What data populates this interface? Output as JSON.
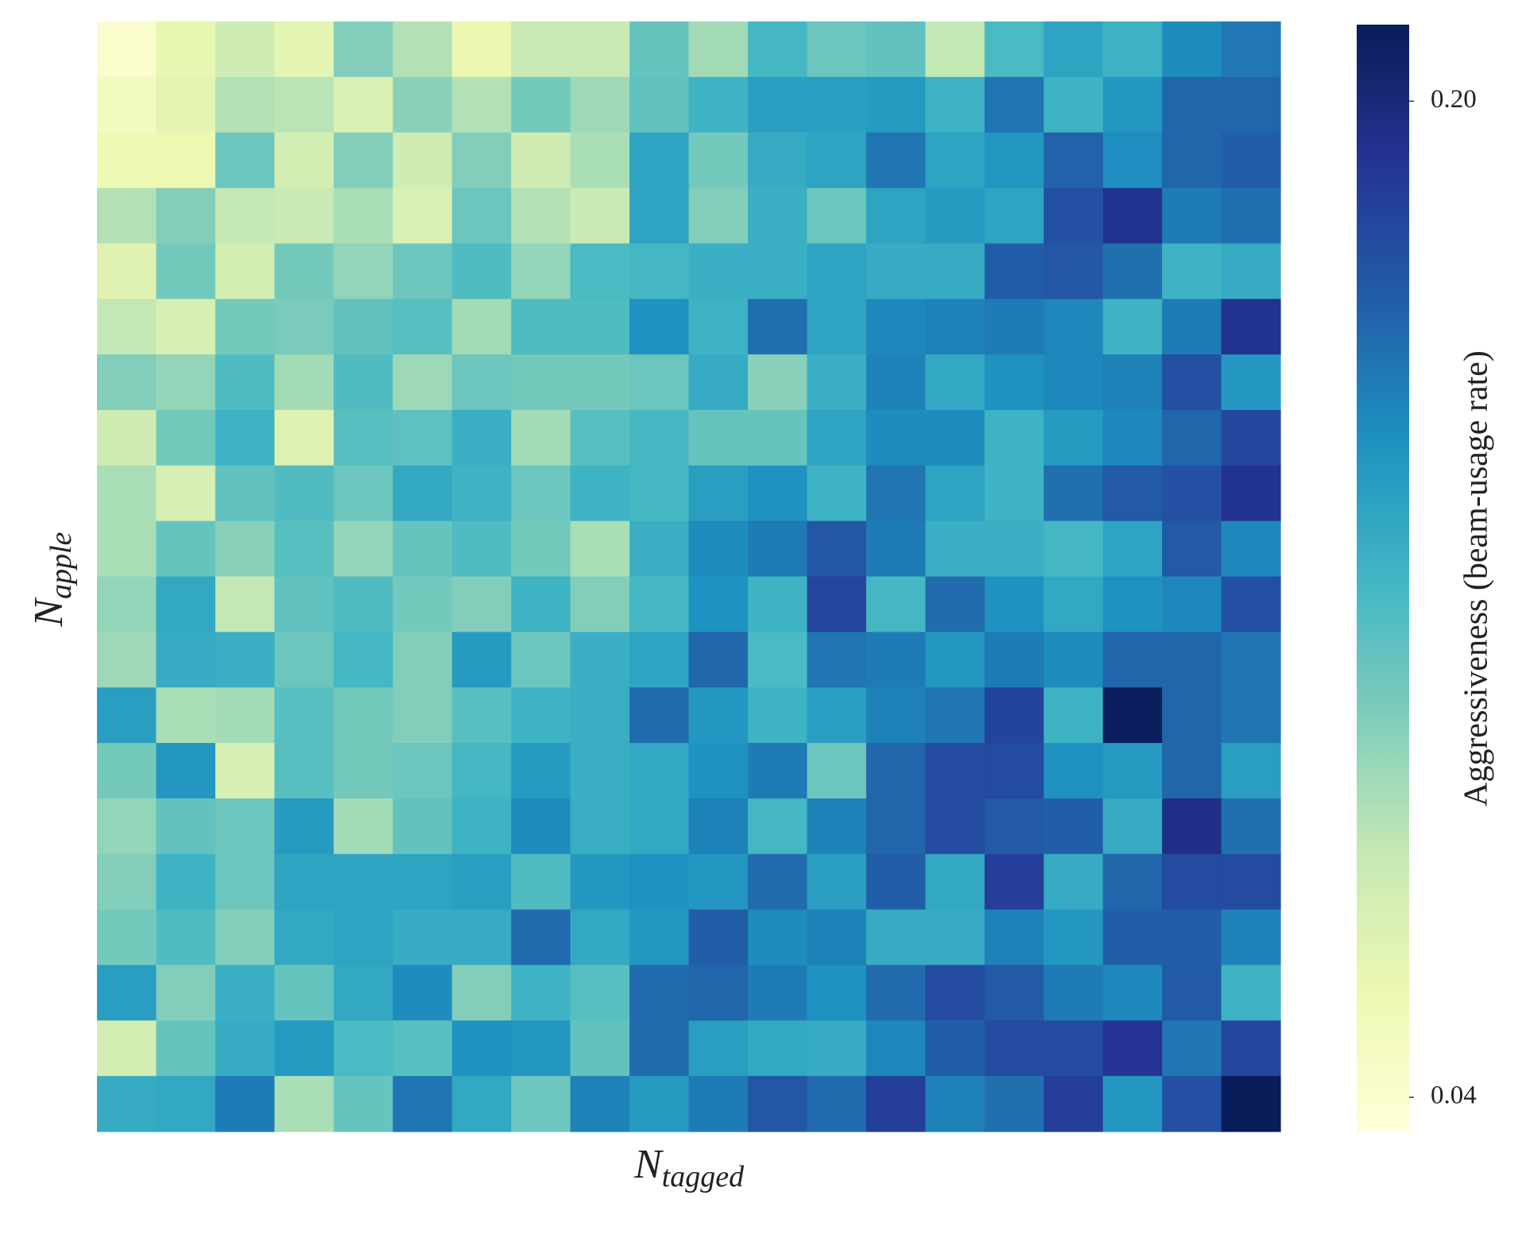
{
  "chart_data": {
    "type": "heatmap",
    "xlabel": {
      "main": "N",
      "subscript": "tagged"
    },
    "ylabel": {
      "main": "N",
      "subscript": "apple"
    },
    "colorbar_label": "Aggressiveness (beam-usage rate)",
    "colormap": [
      "#ffffd9",
      "#edf8b1",
      "#c7e9b4",
      "#7fcdbb",
      "#41b6c4",
      "#1d91c0",
      "#225ea8",
      "#253494",
      "#081d58"
    ],
    "clim": [
      0.0345,
      0.2123
    ],
    "colorbar_ticks": [
      0.04,
      {
        "value": 0.2,
        "label": "0.20"
      }
    ],
    "values": [
      [
        0.04,
        0.06,
        0.075,
        0.062,
        0.1,
        0.085,
        0.058,
        0.078,
        0.078,
        0.11,
        0.09,
        0.122,
        0.108,
        0.112,
        0.08,
        0.12,
        0.135,
        0.125,
        0.148,
        0.157
      ],
      [
        0.05,
        0.062,
        0.085,
        0.083,
        0.068,
        0.098,
        0.085,
        0.105,
        0.092,
        0.112,
        0.125,
        0.138,
        0.138,
        0.14,
        0.125,
        0.158,
        0.125,
        0.142,
        0.165,
        0.165
      ],
      [
        0.055,
        0.057,
        0.108,
        0.072,
        0.1,
        0.075,
        0.1,
        0.075,
        0.088,
        0.135,
        0.105,
        0.13,
        0.135,
        0.158,
        0.135,
        0.142,
        0.166,
        0.147,
        0.165,
        0.168
      ],
      [
        0.085,
        0.1,
        0.08,
        0.078,
        0.088,
        0.068,
        0.108,
        0.085,
        0.077,
        0.135,
        0.1,
        0.128,
        0.108,
        0.135,
        0.14,
        0.135,
        0.175,
        0.192,
        0.155,
        0.16
      ],
      [
        0.065,
        0.105,
        0.072,
        0.105,
        0.095,
        0.108,
        0.118,
        0.095,
        0.12,
        0.122,
        0.128,
        0.128,
        0.135,
        0.13,
        0.13,
        0.168,
        0.172,
        0.16,
        0.125,
        0.13
      ],
      [
        0.08,
        0.07,
        0.105,
        0.103,
        0.112,
        0.115,
        0.09,
        0.118,
        0.118,
        0.145,
        0.125,
        0.16,
        0.135,
        0.15,
        0.152,
        0.155,
        0.15,
        0.125,
        0.155,
        0.192
      ],
      [
        0.1,
        0.095,
        0.118,
        0.09,
        0.118,
        0.092,
        0.108,
        0.105,
        0.105,
        0.108,
        0.13,
        0.098,
        0.128,
        0.152,
        0.132,
        0.145,
        0.15,
        0.152,
        0.175,
        0.142
      ],
      [
        0.075,
        0.105,
        0.125,
        0.065,
        0.115,
        0.113,
        0.128,
        0.09,
        0.115,
        0.122,
        0.11,
        0.11,
        0.135,
        0.148,
        0.148,
        0.125,
        0.14,
        0.15,
        0.165,
        0.18
      ],
      [
        0.088,
        0.07,
        0.112,
        0.118,
        0.108,
        0.132,
        0.125,
        0.108,
        0.125,
        0.122,
        0.138,
        0.145,
        0.125,
        0.158,
        0.135,
        0.125,
        0.16,
        0.17,
        0.175,
        0.192
      ],
      [
        0.088,
        0.11,
        0.098,
        0.115,
        0.095,
        0.11,
        0.118,
        0.105,
        0.088,
        0.128,
        0.148,
        0.155,
        0.172,
        0.155,
        0.128,
        0.128,
        0.122,
        0.135,
        0.17,
        0.15
      ],
      [
        0.095,
        0.132,
        0.08,
        0.112,
        0.118,
        0.105,
        0.1,
        0.125,
        0.1,
        0.122,
        0.145,
        0.125,
        0.18,
        0.122,
        0.162,
        0.145,
        0.132,
        0.145,
        0.15,
        0.175
      ],
      [
        0.092,
        0.13,
        0.128,
        0.108,
        0.122,
        0.1,
        0.14,
        0.108,
        0.128,
        0.135,
        0.165,
        0.12,
        0.158,
        0.155,
        0.142,
        0.155,
        0.148,
        0.165,
        0.165,
        0.158
      ],
      [
        0.138,
        0.088,
        0.09,
        0.115,
        0.105,
        0.1,
        0.115,
        0.125,
        0.128,
        0.162,
        0.142,
        0.125,
        0.138,
        0.152,
        0.158,
        0.182,
        0.125,
        0.21,
        0.165,
        0.158
      ],
      [
        0.105,
        0.142,
        0.07,
        0.115,
        0.105,
        0.108,
        0.122,
        0.14,
        0.128,
        0.132,
        0.145,
        0.155,
        0.108,
        0.165,
        0.178,
        0.178,
        0.145,
        0.14,
        0.165,
        0.138
      ],
      [
        0.095,
        0.112,
        0.108,
        0.14,
        0.09,
        0.112,
        0.125,
        0.148,
        0.128,
        0.132,
        0.152,
        0.122,
        0.152,
        0.165,
        0.178,
        0.17,
        0.168,
        0.13,
        0.195,
        0.16
      ],
      [
        0.1,
        0.125,
        0.108,
        0.135,
        0.135,
        0.135,
        0.138,
        0.118,
        0.142,
        0.145,
        0.142,
        0.162,
        0.138,
        0.168,
        0.132,
        0.185,
        0.13,
        0.165,
        0.178,
        0.178
      ],
      [
        0.105,
        0.118,
        0.1,
        0.132,
        0.135,
        0.13,
        0.13,
        0.162,
        0.132,
        0.142,
        0.168,
        0.148,
        0.152,
        0.13,
        0.13,
        0.152,
        0.142,
        0.168,
        0.168,
        0.152
      ],
      [
        0.138,
        0.1,
        0.128,
        0.11,
        0.132,
        0.148,
        0.1,
        0.125,
        0.115,
        0.162,
        0.165,
        0.155,
        0.145,
        0.162,
        0.178,
        0.17,
        0.155,
        0.15,
        0.17,
        0.125
      ],
      [
        0.072,
        0.11,
        0.13,
        0.14,
        0.12,
        0.115,
        0.145,
        0.142,
        0.112,
        0.162,
        0.138,
        0.132,
        0.13,
        0.15,
        0.168,
        0.178,
        0.178,
        0.19,
        0.158,
        0.18
      ],
      [
        0.13,
        0.132,
        0.155,
        0.088,
        0.11,
        0.158,
        0.132,
        0.108,
        0.152,
        0.14,
        0.155,
        0.172,
        0.162,
        0.185,
        0.152,
        0.16,
        0.185,
        0.142,
        0.175,
        0.212
      ]
    ]
  }
}
